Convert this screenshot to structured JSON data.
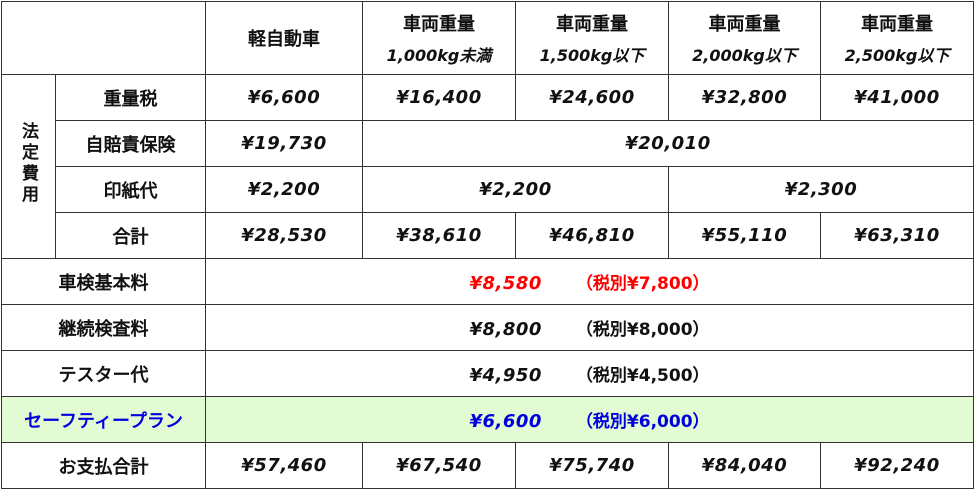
{
  "header": {
    "columns": [
      {
        "title": "軽自動車"
      },
      {
        "title": "車両重量",
        "subtitle": "1,000kg未満"
      },
      {
        "title": "車両重量",
        "subtitle": "1,500kg以下"
      },
      {
        "title": "車両重量",
        "subtitle": "2,000kg以下"
      },
      {
        "title": "車両重量",
        "subtitle": "2,500kg以下"
      }
    ]
  },
  "legal_fees": {
    "group_label": "法定費用",
    "rows": [
      {
        "label": "重量税",
        "values": [
          "¥6,600",
          "¥16,400",
          "¥24,600",
          "¥32,800",
          "¥41,000"
        ]
      },
      {
        "label": "自賠責保険",
        "values": [
          "¥19,730",
          "¥20,010"
        ]
      },
      {
        "label": "印紙代",
        "values": [
          "¥2,200",
          "¥2,200",
          "¥2,300"
        ]
      },
      {
        "label": "合計",
        "values": [
          "¥28,530",
          "¥38,610",
          "¥46,810",
          "¥55,110",
          "¥63,310"
        ]
      }
    ]
  },
  "fees": [
    {
      "label": "車検基本料",
      "price": "¥8,580",
      "tax_excluded": "（税別¥7,800）"
    },
    {
      "label": "継続検査料",
      "price": "¥8,800",
      "tax_excluded": "（税別¥8,000）"
    },
    {
      "label": "テスター代",
      "price": "¥4,950",
      "tax_excluded": "（税別¥4,500）"
    },
    {
      "label": "セーフティープラン",
      "price": "¥6,600",
      "tax_excluded": "（税別¥6,000）"
    }
  ],
  "total": {
    "label": "お支払合計",
    "values": [
      "¥57,460",
      "¥67,540",
      "¥75,740",
      "¥84,040",
      "¥92,240"
    ]
  }
}
